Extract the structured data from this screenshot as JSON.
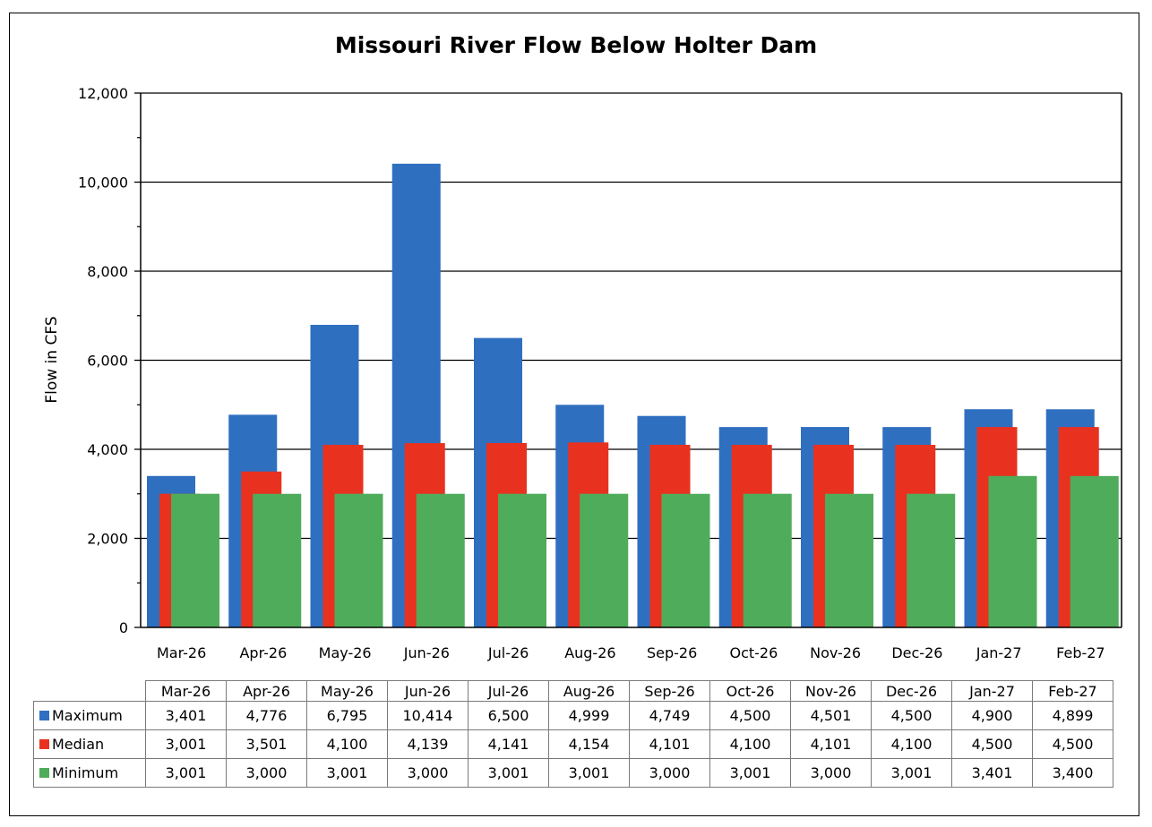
{
  "chart_data": {
    "type": "bar",
    "title": "Missouri River Flow Below Holter Dam",
    "xlabel": "",
    "ylabel": "Flow in CFS",
    "ylim": [
      0,
      12000
    ],
    "yticks": [
      "0",
      "2,000",
      "4,000",
      "6,000",
      "8,000",
      "10,000",
      "12,000"
    ],
    "grid": true,
    "categories": [
      "Mar-26",
      "Apr-26",
      "May-26",
      "Jun-26",
      "Jul-26",
      "Aug-26",
      "Sep-26",
      "Oct-26",
      "Nov-26",
      "Dec-26",
      "Jan-27",
      "Feb-27"
    ],
    "series": [
      {
        "name": "Maximum",
        "color": "#2f6fc0",
        "values": [
          3401,
          4776,
          6795,
          10414,
          6500,
          4999,
          4749,
          4500,
          4501,
          4500,
          4900,
          4899
        ],
        "labels": [
          "3,401",
          "4,776",
          "6,795",
          "10,414",
          "6,500",
          "4,999",
          "4,749",
          "4,500",
          "4,501",
          "4,500",
          "4,900",
          "4,899"
        ]
      },
      {
        "name": "Median",
        "color": "#e8321f",
        "values": [
          3001,
          3501,
          4100,
          4139,
          4141,
          4154,
          4101,
          4100,
          4101,
          4100,
          4500,
          4500
        ],
        "labels": [
          "3,001",
          "3,501",
          "4,100",
          "4,139",
          "4,141",
          "4,154",
          "4,101",
          "4,100",
          "4,101",
          "4,100",
          "4,500",
          "4,500"
        ]
      },
      {
        "name": "Minimum",
        "color": "#4fac5b",
        "values": [
          3001,
          3000,
          3001,
          3000,
          3001,
          3001,
          3000,
          3001,
          3000,
          3001,
          3401,
          3400
        ],
        "labels": [
          "3,001",
          "3,000",
          "3,001",
          "3,000",
          "3,001",
          "3,001",
          "3,000",
          "3,001",
          "3,000",
          "3,001",
          "3,401",
          "3,400"
        ]
      }
    ],
    "legend": "data-table"
  }
}
